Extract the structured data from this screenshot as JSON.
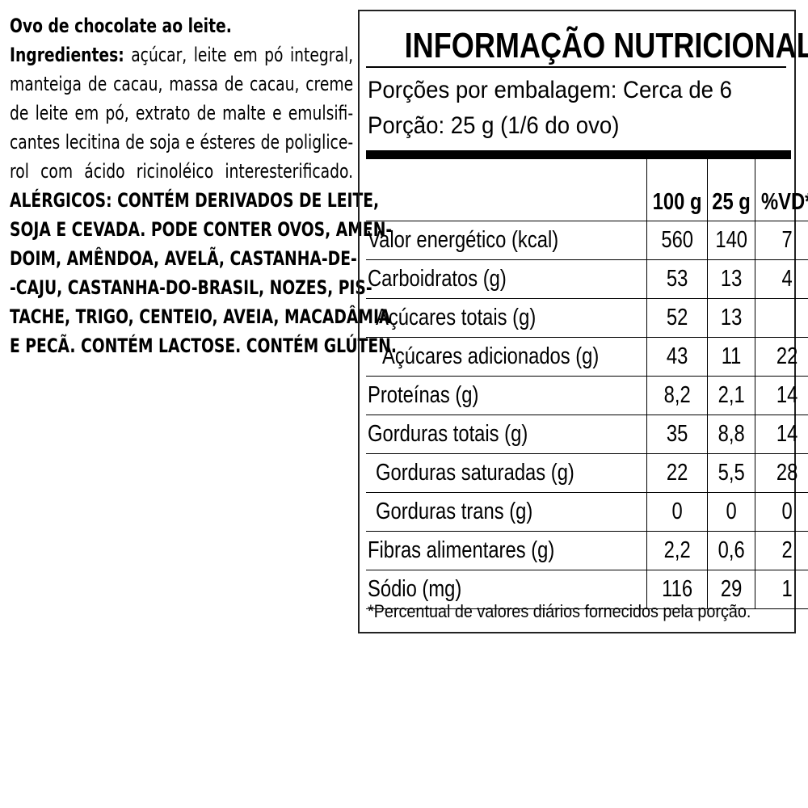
{
  "left_text": {
    "title": "Ovo de chocolate ao leite.",
    "ingredients_label": "Ingredientes:",
    "ingredients_lines": [
      "açúcar, leite em pó integral,",
      "manteiga de cacau, massa de cacau, creme",
      "de leite em pó, extrato de malte e emulsifi-",
      "cantes lecitina de soja e ésteres de poliglice-",
      "rol com ácido ricinoléico interesterificado."
    ],
    "allergens_lines": [
      "ALÉRGICOS: CONTÉM DERIVADOS DE LEITE,",
      "SOJA E CEVADA. PODE CONTER OVOS, AMEN-",
      "DOIM, AMÊNDOA, AVELÃ, CASTANHA-DE-",
      "-CAJU, CASTANHA-DO-BRASIL, NOZES, PIS-",
      "TACHE, TRIGO, CENTEIO, AVEIA, MACADÂMIA",
      "E PECÃ. CONTÉM LACTOSE. CONTÉM GLÚTEN."
    ]
  },
  "nutrition": {
    "title": "INFORMAÇÃO NUTRICIONAL",
    "servings": "Porções por embalagem: Cerca de 6",
    "serving_size": "Porção: 25 g (1/6 do ovo)",
    "columns": [
      "",
      "100 g",
      "25 g",
      "%VD*"
    ],
    "rows": [
      {
        "name": "Valor energético (kcal)",
        "indent": 0,
        "c100": "560",
        "c25": "140",
        "vd": "7"
      },
      {
        "name": "Carboidratos (g)",
        "indent": 0,
        "c100": "53",
        "c25": "13",
        "vd": "4"
      },
      {
        "name": "Açúcares totais (g)",
        "indent": 1,
        "c100": "52",
        "c25": "13",
        "vd": ""
      },
      {
        "name": "Açúcares adicionados (g)",
        "indent": 2,
        "c100": "43",
        "c25": "11",
        "vd": "22"
      },
      {
        "name": "Proteínas (g)",
        "indent": 0,
        "c100": "8,2",
        "c25": "2,1",
        "vd": "14"
      },
      {
        "name": "Gorduras totais (g)",
        "indent": 0,
        "c100": "35",
        "c25": "8,8",
        "vd": "14"
      },
      {
        "name": "Gorduras saturadas (g)",
        "indent": 1,
        "c100": "22",
        "c25": "5,5",
        "vd": "28"
      },
      {
        "name": "Gorduras trans (g)",
        "indent": 1,
        "c100": "0",
        "c25": "0",
        "vd": "0"
      },
      {
        "name": "Fibras alimentares (g)",
        "indent": 0,
        "c100": "2,2",
        "c25": "0,6",
        "vd": "2"
      },
      {
        "name": "Sódio (mg)",
        "indent": 0,
        "c100": "116",
        "c25": "29",
        "vd": "1"
      }
    ],
    "footnote": "*Percentual de valores diários fornecidos pela porção."
  }
}
